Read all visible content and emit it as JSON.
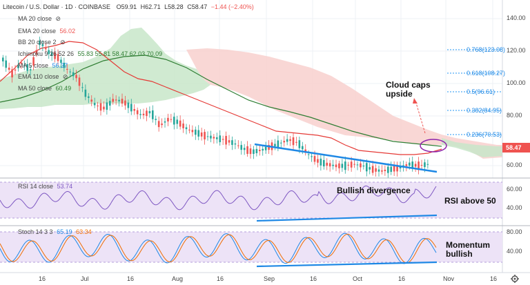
{
  "header": {
    "symbol": "Litecoin / U.S. Dollar · 1D · COINBASE",
    "open": "O59.91",
    "high": "H62.71",
    "low": "L58.28",
    "close": "C58.47",
    "change": "−1.44 (−2.40%)"
  },
  "indicators": [
    {
      "label": "MA 20 close",
      "value": ""
    },
    {
      "label": "EMA 20 close",
      "value": "56.02"
    },
    {
      "label": "BB 20 close 2",
      "value": ""
    },
    {
      "label": "Ichimoku 9 26 52 26",
      "value": "55.83 55.81 58.47 62.03 70.09"
    },
    {
      "label": "MA 5 close",
      "value": "56.37"
    },
    {
      "label": "EMA 110 close",
      "value": ""
    },
    {
      "label": "MA 50 close",
      "value": "60.49"
    }
  ],
  "price_axis": [
    "140.00",
    "120.00",
    "100.00",
    "80.00",
    "60.00"
  ],
  "last_price": "58.47",
  "fib_levels": [
    "0.768(123.08)",
    "0.618(108.27)",
    "0.5(96.61)",
    "0.382(84.95)",
    "0.236(70.53)"
  ],
  "annotations": {
    "cloud": "Cloud caps\nupside",
    "rsi": "Bullish divergence",
    "rsi_level": "RSI above 50",
    "stoch": "Momentum\nbullish"
  },
  "rsi_panel": {
    "label": "RSI 14 close",
    "value": "53.74",
    "axis": [
      "60.00",
      "40.00"
    ]
  },
  "stoch_panel": {
    "label": "Stoch 14 3 3",
    "k": "65.19",
    "d": "63.34",
    "axis": [
      "80.00",
      "40.00"
    ]
  },
  "time_axis": [
    "16",
    "Jul",
    "16",
    "Aug",
    "16",
    "Sep",
    "16",
    "Oct",
    "16",
    "Nov",
    "16"
  ],
  "colors": {
    "up": "#26a69a",
    "down": "#ef5350",
    "ema20": "#e53935",
    "ma50": "#2e7d32",
    "trend": "#1e88e5",
    "rsi": "#7e57c2",
    "stoch_k": "#1e88e5",
    "stoch_d": "#ef6c00"
  },
  "chart_data": {
    "type": "candlestick",
    "source": "Litecoin / U.S. Dollar, daily",
    "price_close_approx": [
      118,
      110,
      116,
      112,
      128,
      122,
      119,
      112,
      108,
      98,
      92,
      90,
      95,
      94,
      90,
      86,
      88,
      80,
      84,
      82,
      78,
      76,
      74,
      73,
      72,
      70,
      67,
      65,
      66,
      68,
      70,
      72,
      70,
      64,
      60,
      58,
      57,
      57,
      58,
      57,
      55,
      54,
      55,
      56,
      58,
      57,
      58
    ],
    "rsi_level": 53.74,
    "stoch_k": 65.19,
    "stoch_d": 63.34,
    "y_range": [
      50,
      145
    ]
  }
}
